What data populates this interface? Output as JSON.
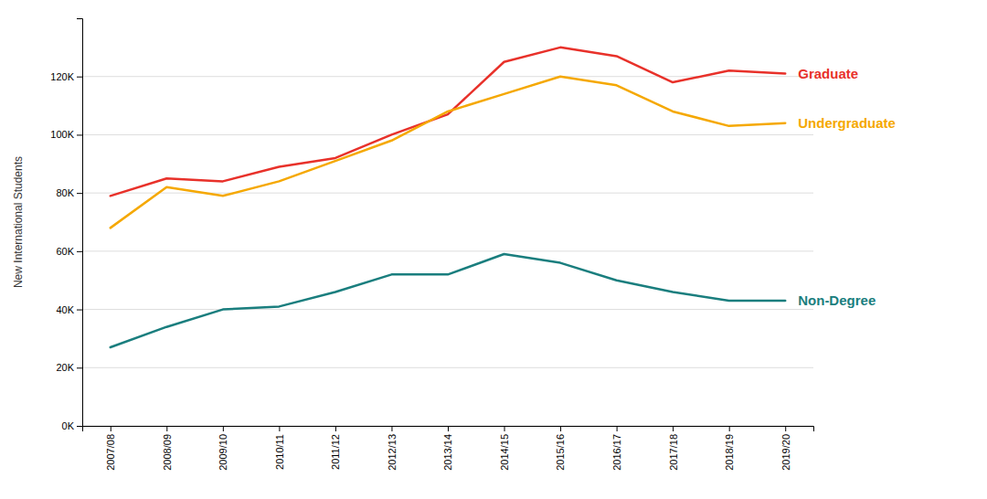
{
  "chart_data": {
    "type": "line",
    "y_label": "New International Students",
    "categories": [
      "2007/08",
      "2008/09",
      "2009/10",
      "2010/11",
      "2011/12",
      "2012/13",
      "2013/14",
      "2014/15",
      "2015/16",
      "2016/17",
      "2017/18",
      "2018/19",
      "2019/20"
    ],
    "series": [
      {
        "name": "Graduate",
        "color": "#e8312a",
        "values": [
          79000,
          85000,
          84000,
          89000,
          92000,
          100000,
          107000,
          125000,
          130000,
          127000,
          118000,
          122000,
          121000
        ]
      },
      {
        "name": "Undergraduate",
        "color": "#f5a800",
        "values": [
          68000,
          82000,
          79000,
          84000,
          91000,
          98000,
          108000,
          114000,
          120000,
          117000,
          108000,
          103000,
          104000
        ]
      },
      {
        "name": "Non-Degree",
        "color": "#1a7e7e",
        "values": [
          27000,
          34000,
          40000,
          41000,
          46000,
          52000,
          52000,
          59000,
          56000,
          50000,
          46000,
          43000,
          43000
        ]
      }
    ],
    "ylim": [
      0,
      140000
    ],
    "yticks": [
      {
        "value": 0,
        "label": "0K"
      },
      {
        "value": 20000,
        "label": "20K"
      },
      {
        "value": 40000,
        "label": "40K"
      },
      {
        "value": 60000,
        "label": "60K"
      },
      {
        "value": 80000,
        "label": "80K"
      },
      {
        "value": 100000,
        "label": "100K"
      },
      {
        "value": 120000,
        "label": "120K"
      }
    ],
    "grid": true
  }
}
